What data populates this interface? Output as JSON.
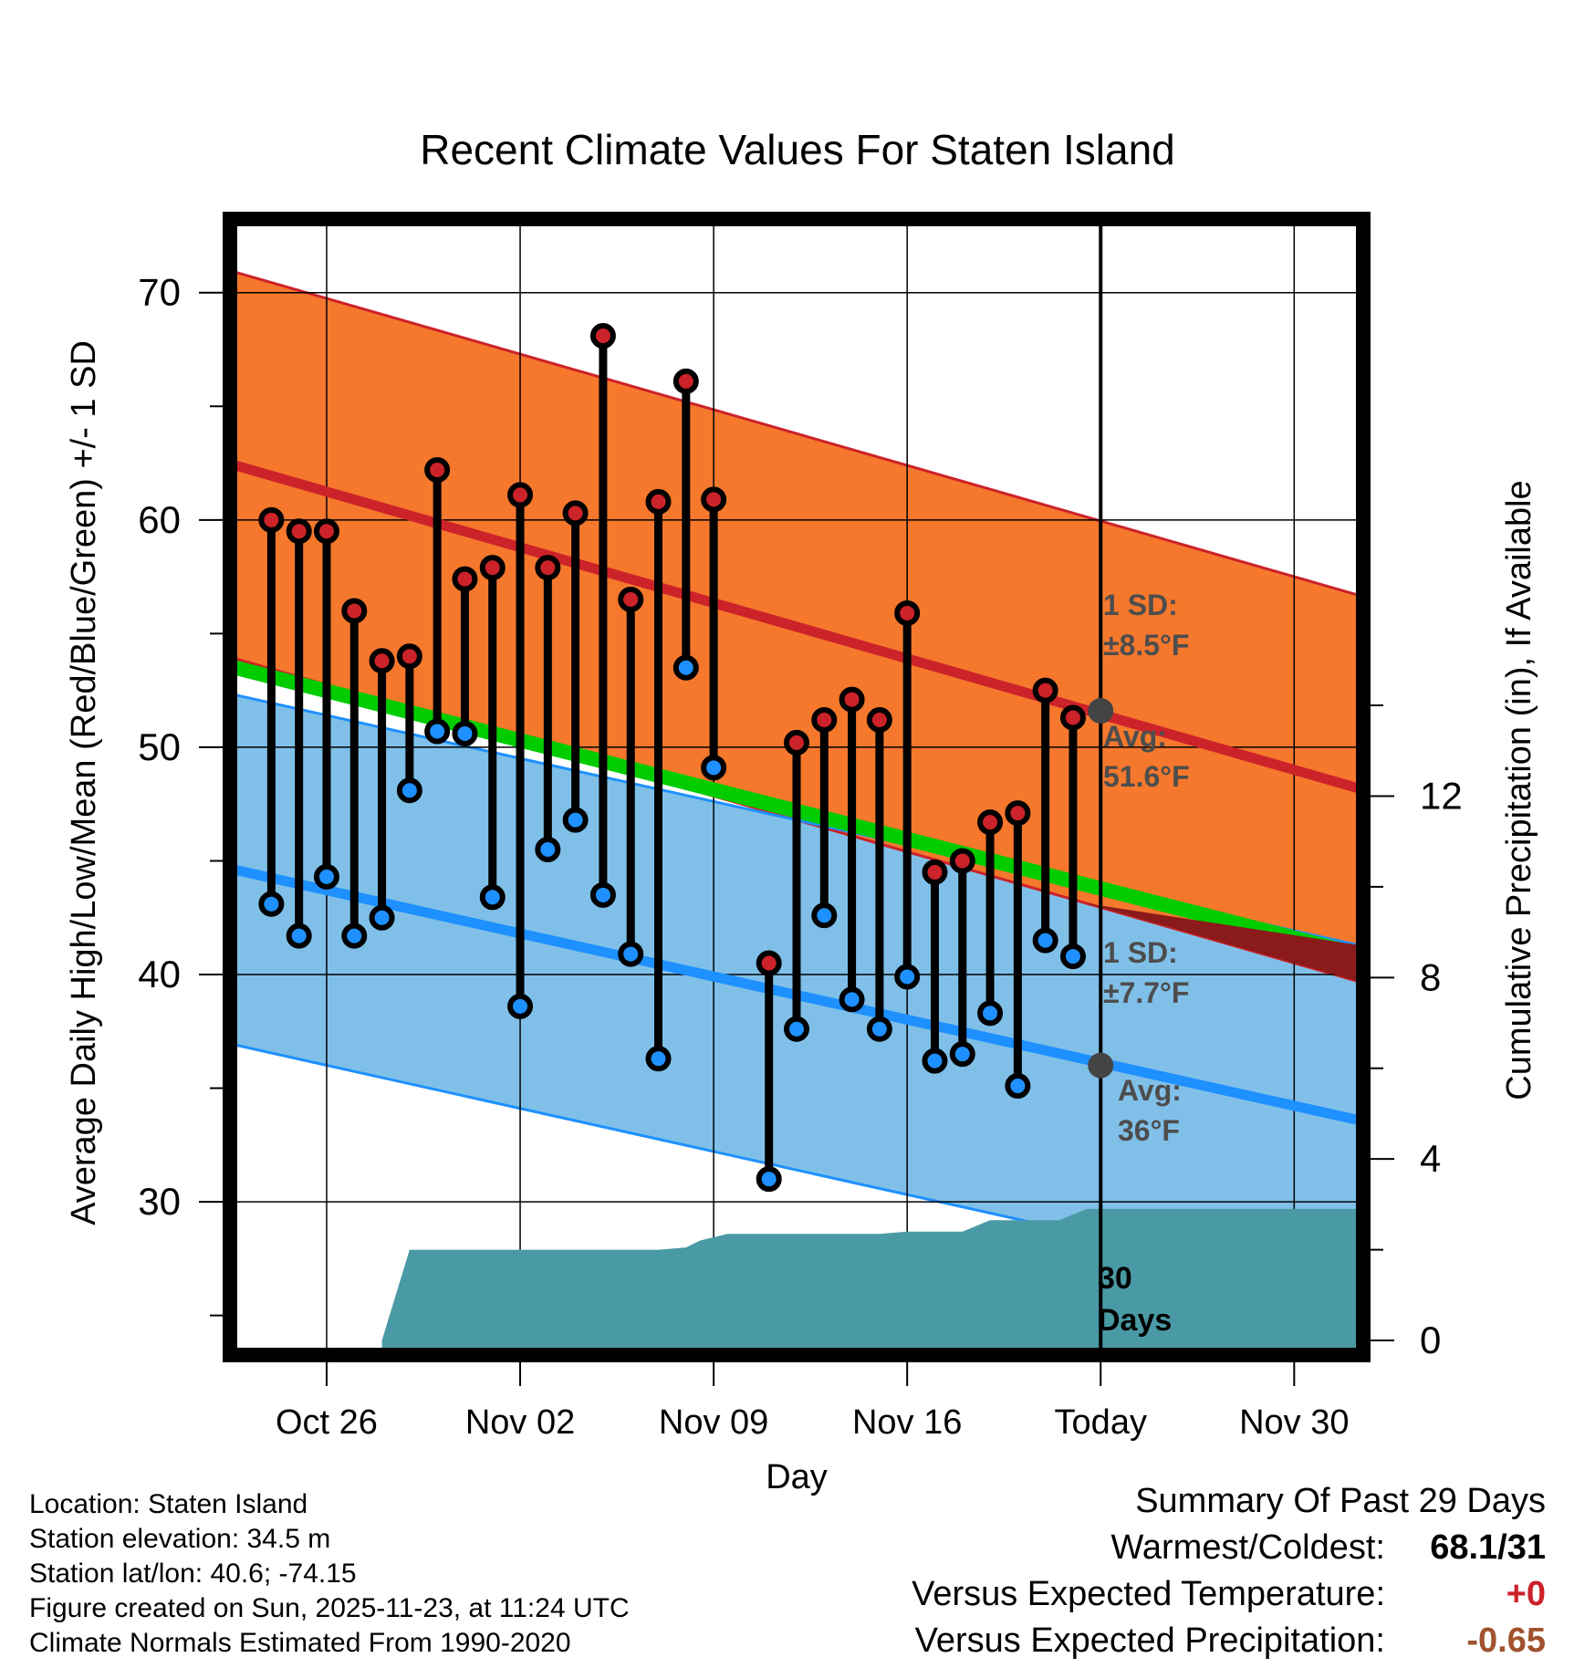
{
  "chart_data": {
    "type": "line",
    "title": "Recent Climate Values For Staten Island",
    "xlabel": "Day",
    "ylabel_left": "Average Daily High/Low/Mean (Red/Blue/Green) +/- 1 SD",
    "ylabel_right": "Cumulative Precipitation (in), If Available",
    "x_tick_labels": [
      {
        "day": 3,
        "label": "Oct 26"
      },
      {
        "day": 10,
        "label": "Nov 02"
      },
      {
        "day": 17,
        "label": "Nov 09"
      },
      {
        "day": 24,
        "label": "Nov 16"
      },
      {
        "day": 31,
        "label": "Today"
      },
      {
        "day": 38,
        "label": "Nov 30"
      }
    ],
    "xlim": [
      -0.3,
      40.3
    ],
    "ylim_left": [
      23.5,
      73
    ],
    "y_ticks_left": [
      30,
      40,
      50,
      60,
      70
    ],
    "ylim_right": [
      -0.2,
      24.6
    ],
    "y_ticks_right": [
      0,
      4,
      8,
      12
    ],
    "today_day": 31,
    "daily": {
      "days": [
        1,
        2,
        3,
        4,
        5,
        6,
        7,
        8,
        9,
        10,
        11,
        12,
        13,
        14,
        15,
        16,
        17,
        18,
        19,
        20,
        21,
        22,
        23,
        24,
        25,
        26,
        27,
        28,
        29,
        30
      ],
      "highs": [
        60.0,
        59.5,
        59.5,
        56.0,
        53.8,
        54.0,
        62.2,
        57.4,
        57.9,
        61.1,
        57.9,
        60.3,
        68.1,
        56.5,
        60.8,
        66.1,
        60.9,
        null,
        40.5,
        50.2,
        51.2,
        52.1,
        51.2,
        55.9,
        44.5,
        45.0,
        46.7,
        47.1,
        52.5,
        51.3
      ],
      "lows": [
        43.1,
        41.7,
        44.3,
        41.7,
        42.5,
        48.1,
        50.7,
        50.6,
        43.4,
        38.6,
        45.5,
        46.8,
        43.5,
        40.9,
        36.3,
        53.5,
        49.1,
        null,
        31.0,
        37.6,
        42.6,
        38.9,
        37.6,
        39.9,
        36.2,
        36.5,
        38.3,
        35.1,
        41.5,
        40.8
      ]
    },
    "normals": {
      "high_avg_start": 62.4,
      "high_avg_end": 48.2,
      "high_sd": 8.5,
      "low_avg_start": 44.6,
      "low_avg_end": 33.6,
      "low_sd": 7.7,
      "mean_start": 53.5,
      "mean_end": 40.9
    },
    "precip": {
      "days": [
        5.0,
        6.0,
        11.5,
        15.0,
        16.0,
        16.5,
        17.5,
        18.0,
        20.0,
        21.0,
        23.0,
        24.0,
        25.0,
        26.0,
        27.0,
        28.0,
        29.5,
        30.5,
        31.0,
        40.3
      ],
      "values": [
        0,
        2.0,
        2.0,
        2.0,
        2.05,
        2.2,
        2.35,
        2.35,
        2.35,
        2.35,
        2.35,
        2.4,
        2.4,
        2.4,
        2.65,
        2.65,
        2.65,
        2.9,
        2.9,
        2.9
      ]
    },
    "annotations": {
      "high_sd_line1": "1 SD:",
      "high_sd_line2": "±8.5°F",
      "high_avg_line1": "Avg:",
      "high_avg_line2": "51.6°F",
      "high_avg_value": 51.6,
      "low_sd_line1": "1 SD:",
      "low_sd_line2": "±7.7°F",
      "low_avg_line1": "Avg:",
      "low_avg_line2": "36°F",
      "low_avg_value": 36,
      "days_line1": "30",
      "days_line2": "Days"
    },
    "colors": {
      "high_band": "#f5782d",
      "high_edge": "#cc2229",
      "high_avg": "#cc2229",
      "low_band": "#80c0e8",
      "low_edge": "#1e90ff",
      "low_avg": "#1e90ff",
      "mean": "#00cc00",
      "precip": "#4a9aa5",
      "dark_red": "#8b1a1a",
      "annotation": "#4d4d4d"
    }
  },
  "info": {
    "location": "Location: Staten Island",
    "elevation": "Station elevation: 34.5 m",
    "latlon": "Station lat/lon: 40.6; -74.15",
    "created": "Figure created on Sun, 2025-11-23, at 11:24 UTC",
    "normals": "Climate Normals Estimated From 1990-2020"
  },
  "summary": {
    "title": "Summary Of Past 29 Days",
    "warmest_coldest_label": "Warmest/Coldest:",
    "warmest_coldest_value": "68.1/31",
    "temp_label": "Versus Expected Temperature:",
    "temp_value": "+0",
    "temp_color": "#cc2229",
    "precip_label": "Versus Expected Precipitation:",
    "precip_value": "-0.65",
    "precip_color": "#a0522d"
  }
}
